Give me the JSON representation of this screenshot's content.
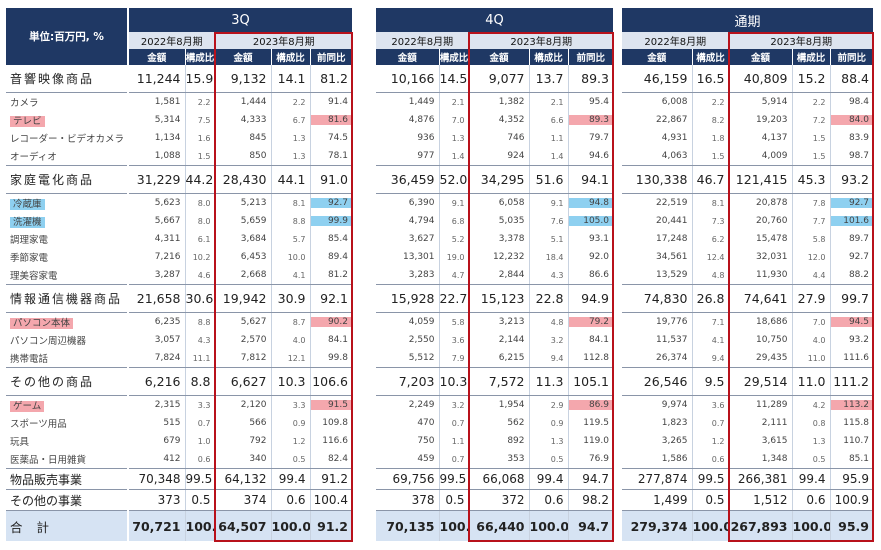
{
  "unit_label": "単位:百万円, %",
  "periods": [
    {
      "title": "3Q",
      "prev_label": "2022年8月期",
      "cur_label": "2023年8月期"
    },
    {
      "title": "4Q",
      "prev_label": "2022年8月期",
      "cur_label": "2023年8月期"
    },
    {
      "title": "通期",
      "prev_label": "2022年8月期",
      "cur_label": "2023年8月期"
    }
  ],
  "col_headers": {
    "amount": "金額",
    "share": "構成比",
    "yoy": "前同比"
  },
  "rows": [
    {
      "label": "音響映像商品",
      "type": "cat",
      "p": [
        [
          "11,244",
          "15.9",
          "9,132",
          "14.1",
          "81.2"
        ],
        [
          "10,166",
          "14.5",
          "9,077",
          "13.7",
          "89.3"
        ],
        [
          "46,159",
          "16.5",
          "40,809",
          "15.2",
          "88.4"
        ]
      ]
    },
    {
      "label": "カメラ",
      "type": "sub",
      "p": [
        [
          "1,581",
          "2.2",
          "1,444",
          "2.2",
          "91.4"
        ],
        [
          "1,449",
          "2.1",
          "1,382",
          "2.1",
          "95.4"
        ],
        [
          "6,008",
          "2.2",
          "5,914",
          "2.2",
          "98.4"
        ]
      ]
    },
    {
      "label": "テレビ",
      "type": "sub",
      "label_hl": "red",
      "hl": [
        "red",
        "red",
        "red"
      ],
      "p": [
        [
          "5,314",
          "7.5",
          "4,333",
          "6.7",
          "81.6"
        ],
        [
          "4,876",
          "7.0",
          "4,352",
          "6.6",
          "89.3"
        ],
        [
          "22,867",
          "8.2",
          "19,203",
          "7.2",
          "84.0"
        ]
      ]
    },
    {
      "label": "レコーダー・ビデオカメラ",
      "type": "sub",
      "p": [
        [
          "1,134",
          "1.6",
          "845",
          "1.3",
          "74.5"
        ],
        [
          "936",
          "1.3",
          "746",
          "1.1",
          "79.7"
        ],
        [
          "4,931",
          "1.8",
          "4,137",
          "1.5",
          "83.9"
        ]
      ]
    },
    {
      "label": "オーディオ",
      "type": "sub",
      "p": [
        [
          "1,088",
          "1.5",
          "850",
          "1.3",
          "78.1"
        ],
        [
          "977",
          "1.4",
          "924",
          "1.4",
          "94.6"
        ],
        [
          "4,063",
          "1.5",
          "4,009",
          "1.5",
          "98.7"
        ]
      ]
    },
    {
      "label": "家庭電化商品",
      "type": "cat",
      "p": [
        [
          "31,229",
          "44.2",
          "28,430",
          "44.1",
          "91.0"
        ],
        [
          "36,459",
          "52.0",
          "34,295",
          "51.6",
          "94.1"
        ],
        [
          "130,338",
          "46.7",
          "121,415",
          "45.3",
          "93.2"
        ]
      ]
    },
    {
      "label": "冷蔵庫",
      "type": "sub",
      "label_hl": "blue",
      "hl": [
        "blue",
        "blue",
        "blue"
      ],
      "p": [
        [
          "5,623",
          "8.0",
          "5,213",
          "8.1",
          "92.7"
        ],
        [
          "6,390",
          "9.1",
          "6,058",
          "9.1",
          "94.8"
        ],
        [
          "22,519",
          "8.1",
          "20,878",
          "7.8",
          "92.7"
        ]
      ]
    },
    {
      "label": "洗濯機",
      "type": "sub",
      "label_hl": "blue",
      "hl": [
        "blue",
        "blue",
        "blue"
      ],
      "p": [
        [
          "5,667",
          "8.0",
          "5,659",
          "8.8",
          "99.9"
        ],
        [
          "4,794",
          "6.8",
          "5,035",
          "7.6",
          "105.0"
        ],
        [
          "20,441",
          "7.3",
          "20,760",
          "7.7",
          "101.6"
        ]
      ]
    },
    {
      "label": "調理家電",
      "type": "sub",
      "p": [
        [
          "4,311",
          "6.1",
          "3,684",
          "5.7",
          "85.4"
        ],
        [
          "3,627",
          "5.2",
          "3,378",
          "5.1",
          "93.1"
        ],
        [
          "17,248",
          "6.2",
          "15,478",
          "5.8",
          "89.7"
        ]
      ]
    },
    {
      "label": "季節家電",
      "type": "sub",
      "p": [
        [
          "7,216",
          "10.2",
          "6,453",
          "10.0",
          "89.4"
        ],
        [
          "13,301",
          "19.0",
          "12,232",
          "18.4",
          "92.0"
        ],
        [
          "34,561",
          "12.4",
          "32,031",
          "12.0",
          "92.7"
        ]
      ]
    },
    {
      "label": "理美容家電",
      "type": "sub",
      "p": [
        [
          "3,287",
          "4.6",
          "2,668",
          "4.1",
          "81.2"
        ],
        [
          "3,283",
          "4.7",
          "2,844",
          "4.3",
          "86.6"
        ],
        [
          "13,529",
          "4.8",
          "11,930",
          "4.4",
          "88.2"
        ]
      ]
    },
    {
      "label": "情報通信機器商品",
      "type": "cat",
      "p": [
        [
          "21,658",
          "30.6",
          "19,942",
          "30.9",
          "92.1"
        ],
        [
          "15,928",
          "22.7",
          "15,123",
          "22.8",
          "94.9"
        ],
        [
          "74,830",
          "26.8",
          "74,641",
          "27.9",
          "99.7"
        ]
      ]
    },
    {
      "label": "パソコン本体",
      "type": "sub",
      "label_hl": "red",
      "hl": [
        "red",
        "red",
        "red"
      ],
      "p": [
        [
          "6,235",
          "8.8",
          "5,627",
          "8.7",
          "90.2"
        ],
        [
          "4,059",
          "5.8",
          "3,213",
          "4.8",
          "79.2"
        ],
        [
          "19,776",
          "7.1",
          "18,686",
          "7.0",
          "94.5"
        ]
      ]
    },
    {
      "label": "パソコン周辺機器",
      "type": "sub",
      "p": [
        [
          "3,057",
          "4.3",
          "2,570",
          "4.0",
          "84.1"
        ],
        [
          "2,550",
          "3.6",
          "2,144",
          "3.2",
          "84.1"
        ],
        [
          "11,537",
          "4.1",
          "10,750",
          "4.0",
          "93.2"
        ]
      ]
    },
    {
      "label": "携帯電話",
      "type": "sub",
      "p": [
        [
          "7,824",
          "11.1",
          "7,812",
          "12.1",
          "99.8"
        ],
        [
          "5,512",
          "7.9",
          "6,215",
          "9.4",
          "112.8"
        ],
        [
          "26,374",
          "9.4",
          "29,435",
          "11.0",
          "111.6"
        ]
      ]
    },
    {
      "label": "その他の商品",
      "type": "cat",
      "p": [
        [
          "6,216",
          "8.8",
          "6,627",
          "10.3",
          "106.6"
        ],
        [
          "7,203",
          "10.3",
          "7,572",
          "11.3",
          "105.1"
        ],
        [
          "26,546",
          "9.5",
          "29,514",
          "11.0",
          "111.2"
        ]
      ]
    },
    {
      "label": "ゲーム",
      "type": "sub",
      "label_hl": "red",
      "hl": [
        "red",
        "red",
        "red"
      ],
      "p": [
        [
          "2,315",
          "3.3",
          "2,120",
          "3.3",
          "91.5"
        ],
        [
          "2,249",
          "3.2",
          "1,954",
          "2.9",
          "86.9"
        ],
        [
          "9,974",
          "3.6",
          "11,289",
          "4.2",
          "113.2"
        ]
      ]
    },
    {
      "label": "スポーツ用品",
      "type": "sub",
      "p": [
        [
          "515",
          "0.7",
          "566",
          "0.9",
          "109.8"
        ],
        [
          "470",
          "0.7",
          "562",
          "0.9",
          "119.5"
        ],
        [
          "1,823",
          "0.7",
          "2,111",
          "0.8",
          "115.8"
        ]
      ]
    },
    {
      "label": "玩具",
      "type": "sub",
      "p": [
        [
          "679",
          "1.0",
          "792",
          "1.2",
          "116.6"
        ],
        [
          "750",
          "1.1",
          "892",
          "1.3",
          "119.0"
        ],
        [
          "3,265",
          "1.2",
          "3,615",
          "1.3",
          "110.7"
        ]
      ]
    },
    {
      "label": "医薬品・日用雑貨",
      "type": "sub",
      "p": [
        [
          "412",
          "0.6",
          "340",
          "0.5",
          "82.4"
        ],
        [
          "459",
          "0.7",
          "353",
          "0.5",
          "76.9"
        ],
        [
          "1,586",
          "0.6",
          "1,348",
          "0.5",
          "85.1"
        ]
      ]
    },
    {
      "label": "物品販売事業",
      "type": "oth",
      "p": [
        [
          "70,348",
          "99.5",
          "64,132",
          "99.4",
          "91.2"
        ],
        [
          "69,756",
          "99.5",
          "66,068",
          "99.4",
          "94.7"
        ],
        [
          "277,874",
          "99.5",
          "266,381",
          "99.4",
          "95.9"
        ]
      ]
    },
    {
      "label": "その他の事業",
      "type": "oth",
      "p": [
        [
          "373",
          "0.5",
          "374",
          "0.6",
          "100.4"
        ],
        [
          "378",
          "0.5",
          "372",
          "0.6",
          "98.2"
        ],
        [
          "1,499",
          "0.5",
          "1,512",
          "0.6",
          "100.9"
        ]
      ]
    },
    {
      "label": "合計",
      "type": "tot",
      "p": [
        [
          "70,721",
          "100.0",
          "64,507",
          "100.0",
          "91.2"
        ],
        [
          "70,135",
          "100.0",
          "66,440",
          "100.0",
          "94.7"
        ],
        [
          "279,374",
          "100.0",
          "267,893",
          "100.0",
          "95.9"
        ]
      ]
    }
  ]
}
